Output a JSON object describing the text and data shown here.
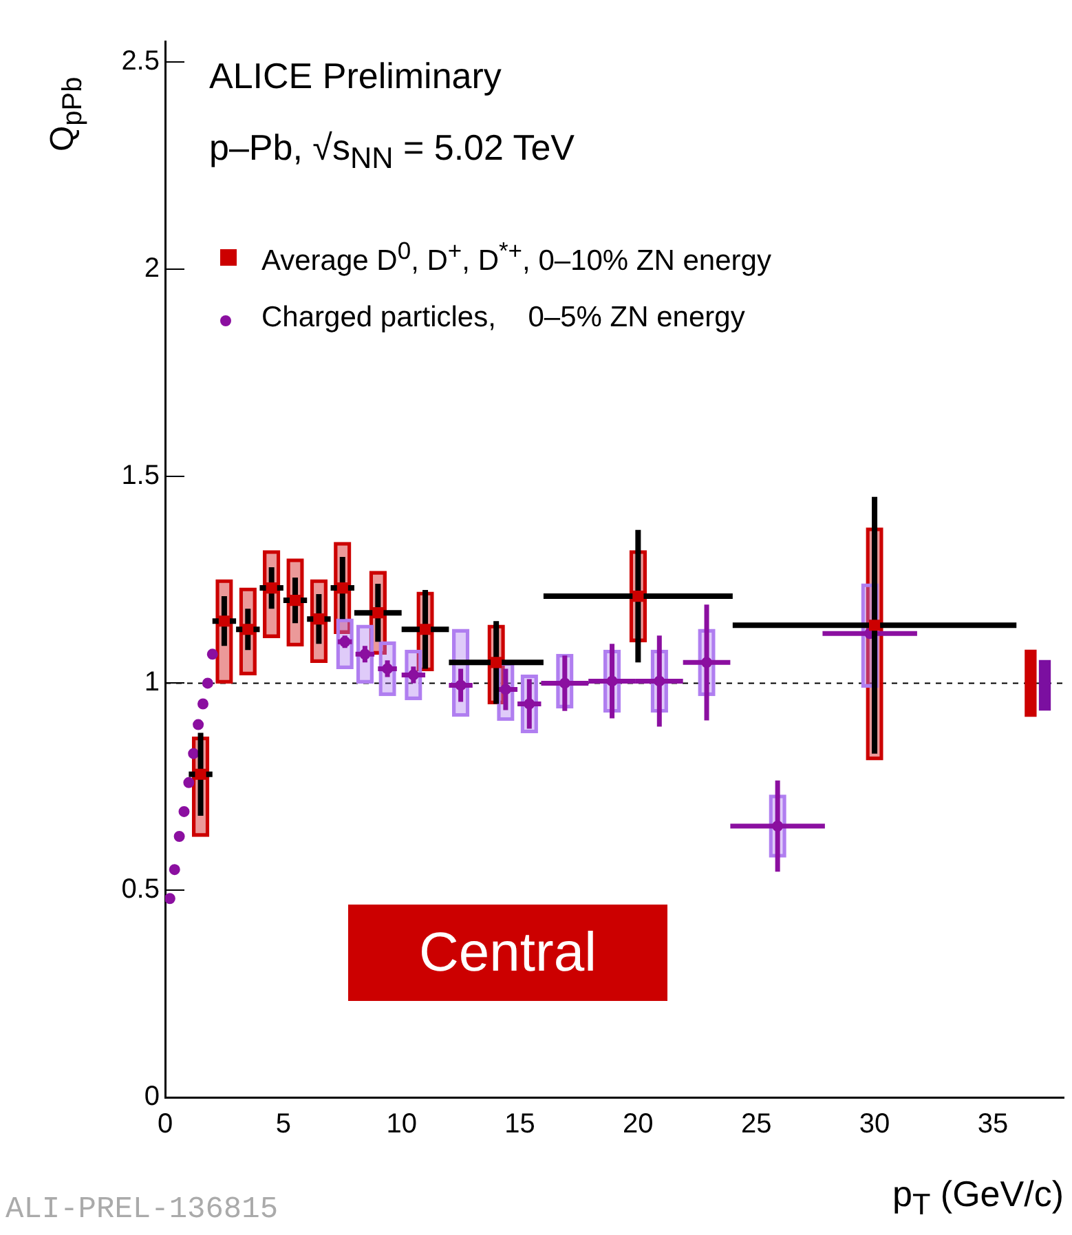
{
  "chart_data": {
    "type": "scatter",
    "title": "ALICE Preliminary",
    "subtitle": "p–Pb, √s$_{NN}$ = 5.02 TeV",
    "xlabel": "p$_{T}$ (GeV/c)",
    "ylabel": "Q$_{pPb}$",
    "xlim": [
      0,
      38
    ],
    "xticks": [
      0,
      5,
      10,
      15,
      20,
      25,
      30,
      35
    ],
    "ylim": [
      0,
      2.55
    ],
    "yticks": [
      0,
      0.5,
      1,
      1.5,
      2,
      2.5
    ],
    "grid": false,
    "legend": "top left",
    "ref_lines": [
      {
        "axis": "y",
        "value": 1,
        "color": "#000000",
        "line_style": "dashed"
      }
    ],
    "annotations": [
      "Central",
      "ALI-PREL-136815"
    ],
    "series": [
      {
        "name": "Average D$^{0}$, D$^{+}$, D$^{*+}$, 0–10% ZN energy",
        "marker": "square",
        "color": "#cc0000",
        "x": [
          1.5,
          2.5,
          3.5,
          4.5,
          5.5,
          6.5,
          7.5,
          9,
          11,
          14,
          20,
          30
        ],
        "values": [
          0.78,
          1.15,
          1.13,
          1.23,
          1.2,
          1.155,
          1.23,
          1.17,
          1.13,
          1.05,
          1.21,
          1.14
        ],
        "errors": [
          0.1,
          0.06,
          0.05,
          0.05,
          0.055,
          0.06,
          0.075,
          0.07,
          0.095,
          0.1,
          0.16,
          0.31
        ],
        "xerrors": [
          0.5,
          0.5,
          0.5,
          0.5,
          0.5,
          0.5,
          0.5,
          1,
          1,
          2,
          4,
          6
        ]
      },
      {
        "name": "Charged particles,    0–5% ZN energy",
        "marker": "circle",
        "color": "#8b0fa0",
        "x": [
          0.2,
          0.4,
          0.6,
          0.8,
          1.0,
          1.2,
          1.4,
          1.6,
          1.8,
          2.0,
          7.6,
          8.45,
          9.4,
          10.5,
          12.5,
          14.4,
          15.4,
          16.9,
          18.9,
          20.9,
          22.9,
          25.9,
          29.8
        ],
        "values": [
          0.48,
          0.55,
          0.63,
          0.69,
          0.76,
          0.83,
          0.9,
          0.95,
          1.0,
          1.07,
          1.1,
          1.07,
          1.035,
          1.02,
          0.995,
          0.985,
          0.95,
          1.0,
          1.005,
          1.005,
          1.05,
          0.655,
          1.12
        ],
        "errors": [
          null,
          null,
          null,
          null,
          null,
          null,
          null,
          null,
          null,
          null,
          0.015,
          0.02,
          0.02,
          0.02,
          0.04,
          0.05,
          0.06,
          0.067,
          0.09,
          0.11,
          0.14,
          0.11,
          null
        ],
        "xerrors": [
          null,
          null,
          null,
          null,
          null,
          null,
          null,
          null,
          null,
          null,
          0.3,
          0.4,
          0.4,
          0.5,
          0.5,
          0.5,
          0.5,
          1,
          1,
          1,
          1,
          2,
          2
        ]
      },
      {
        "type": "bar",
        "color": "#b07ef0",
        "x": [
          7.6,
          8.45,
          9.4,
          10.5,
          12.5,
          14.4,
          15.4,
          16.9,
          18.9,
          20.9,
          22.9,
          25.9,
          29.8
        ],
        "base": [
          1.035,
          1.0,
          0.97,
          0.96,
          0.92,
          0.91,
          0.88,
          0.94,
          0.93,
          0.93,
          0.97,
          0.58,
          0.99
        ],
        "values": [
          0.12,
          0.14,
          0.13,
          0.12,
          0.21,
          0.14,
          0.14,
          0.13,
          0.15,
          0.15,
          0.16,
          0.15,
          0.25
        ]
      },
      {
        "type": "bar",
        "color": "#cc0000",
        "x": [
          1.5,
          2.5,
          3.5,
          4.5,
          5.5,
          6.5,
          7.5,
          9,
          11,
          14,
          20,
          30
        ],
        "base": [
          0.63,
          1.0,
          1.02,
          1.11,
          1.09,
          1.05,
          1.12,
          1.07,
          1.03,
          0.95,
          1.1,
          0.815
        ],
        "values": [
          0.24,
          0.25,
          0.21,
          0.21,
          0.21,
          0.2,
          0.22,
          0.2,
          0.19,
          0.19,
          0.22,
          0.56
        ]
      },
      {
        "type": "bar",
        "colors": [
          "#cc0000",
          "#7b0fa0"
        ],
        "x": [
          36.6,
          37.2
        ],
        "base": [
          0.92,
          0.935
        ],
        "values": [
          0.16,
          0.12
        ]
      }
    ]
  }
}
